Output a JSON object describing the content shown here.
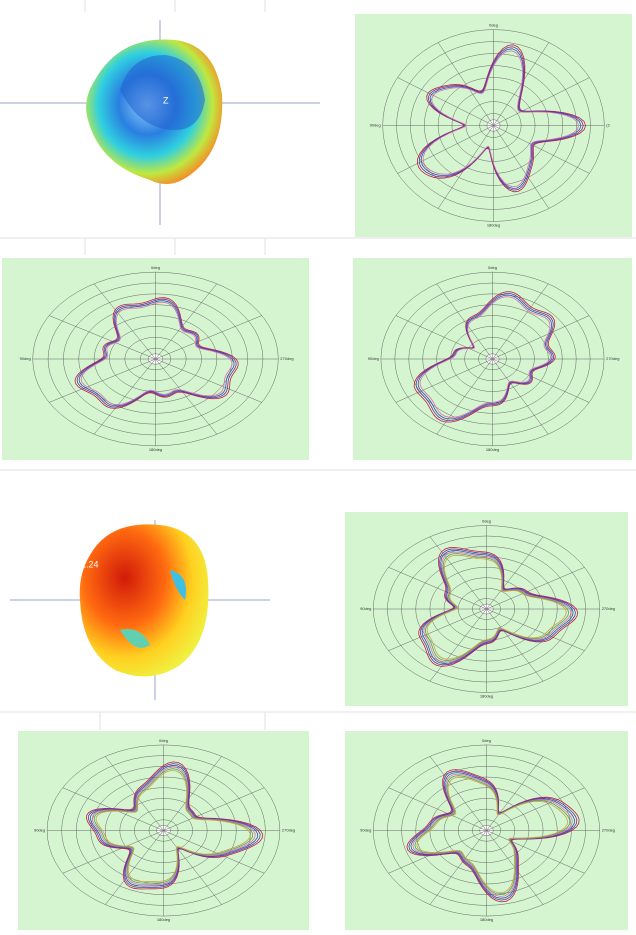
{
  "panels": [
    {
      "top": "0deg",
      "left": "90deg",
      "right": "(2",
      "bottom": "180deg"
    },
    {
      "top": "0deg",
      "left": "90deg",
      "right": "270deg",
      "bottom": "180deg"
    },
    {
      "top": "0deg",
      "left": "90deg",
      "right": "270deg",
      "bottom": "180deg"
    },
    {
      "top": "0deg",
      "left": "90deg",
      "right": "270deg",
      "bottom": "180deg"
    },
    {
      "top": "0deg",
      "left": "90deg",
      "right": "270deg",
      "bottom": "180deg"
    },
    {
      "top": "0deg",
      "left": "90deg",
      "right": "270deg",
      "bottom": "180deg"
    }
  ],
  "pattern_labels": [
    "Z",
    "1.24"
  ]
}
